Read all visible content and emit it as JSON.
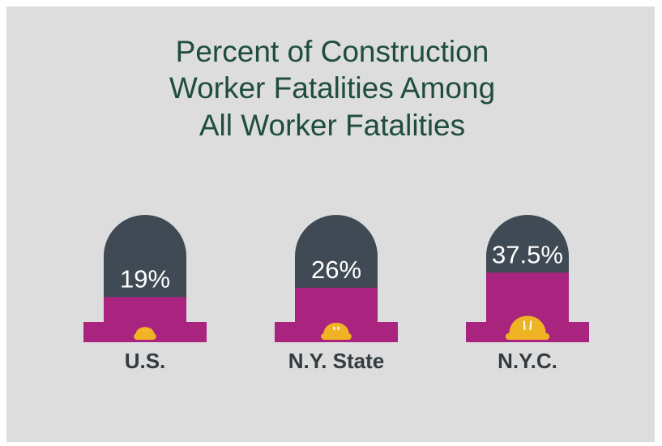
{
  "chart_data": {
    "type": "tombstone",
    "title": [
      "Percent of Construction",
      "Worker Fatalities Among",
      "All Worker Fatalities"
    ],
    "categories": [
      "U.S.",
      "N.Y. State",
      "N.Y.C."
    ],
    "values": [
      19,
      26,
      37.5
    ],
    "value_labels": [
      "19%",
      "26%",
      "37.5%"
    ],
    "color": "#a8247f",
    "stone_color": "#3f4a54",
    "hat_color": "#f0b323"
  }
}
